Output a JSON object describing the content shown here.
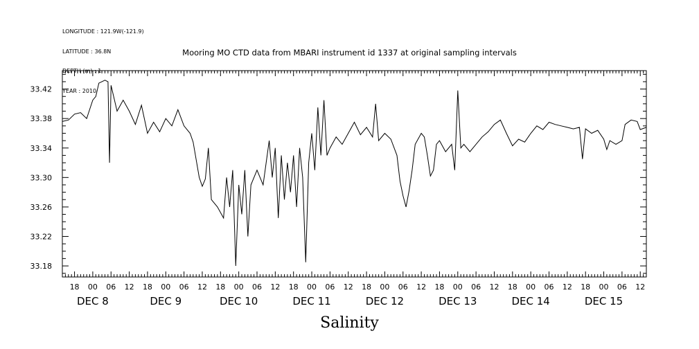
{
  "header": {
    "longitude": "LONGITUDE : 121.9W(-121.9)",
    "latitude": "LATITUDE : 36.8N",
    "depth": "DEPTH (m) : 1",
    "year": "YEAR : 2010"
  },
  "chart_data": {
    "type": "line",
    "title": "Mooring MO CTD data from MBARI instrument id 1337 at original sampling intervals",
    "xlabel": "Salinity",
    "ylabel": "",
    "ylim": [
      33.165,
      33.445
    ],
    "yticks": [
      "33.42",
      "33.38",
      "33.34",
      "33.30",
      "33.26",
      "33.22",
      "33.18"
    ],
    "ytick_values": [
      33.42,
      33.38,
      33.34,
      33.3,
      33.26,
      33.22,
      33.18
    ],
    "xlim_hours_note": "DEC 7 14:00 to DEC 15 14:00",
    "x_hour_labels": [
      "18",
      "00",
      "06",
      "12",
      "18",
      "00",
      "06",
      "12",
      "18",
      "00",
      "06",
      "12",
      "18",
      "00",
      "06",
      "12",
      "18",
      "00",
      "06",
      "12",
      "18",
      "00",
      "06",
      "12",
      "18",
      "00",
      "06",
      "12",
      "18",
      "00",
      "06",
      "12",
      "18",
      "00",
      "06",
      "12",
      "18",
      "00",
      "06",
      "12",
      "18",
      "00",
      "06",
      "12"
    ],
    "x_day_labels": [
      "DEC 8",
      "DEC 9",
      "DEC 10",
      "DEC 11",
      "DEC 12",
      "DEC 13",
      "DEC 14",
      "DEC 15"
    ],
    "series": [
      {
        "points": [
          [
            "DEC 7 14:00",
            33.376
          ],
          [
            "DEC 7 16:00",
            33.378
          ],
          [
            "DEC 7 18:00",
            33.386
          ],
          [
            "DEC 7 20:00",
            33.388
          ],
          [
            "DEC 7 22:00",
            33.38
          ],
          [
            "DEC 8 00:00",
            33.405
          ],
          [
            "DEC 8 01:00",
            33.41
          ],
          [
            "DEC 8 02:00",
            33.428
          ],
          [
            "DEC 8 04:00",
            33.432
          ],
          [
            "DEC 8 05:00",
            33.43
          ],
          [
            "DEC 8 05:30",
            33.32
          ],
          [
            "DEC 8 06:00",
            33.425
          ],
          [
            "DEC 8 08:00",
            33.39
          ],
          [
            "DEC 8 10:00",
            33.405
          ],
          [
            "DEC 8 12:00",
            33.39
          ],
          [
            "DEC 8 14:00",
            33.372
          ],
          [
            "DEC 8 16:00",
            33.398
          ],
          [
            "DEC 8 18:00",
            33.36
          ],
          [
            "DEC 8 20:00",
            33.375
          ],
          [
            "DEC 8 22:00",
            33.362
          ],
          [
            "DEC 9 00:00",
            33.38
          ],
          [
            "DEC 9 02:00",
            33.37
          ],
          [
            "DEC 9 04:00",
            33.392
          ],
          [
            "DEC 9 06:00",
            33.37
          ],
          [
            "DEC 9 08:00",
            33.36
          ],
          [
            "DEC 9 09:00",
            33.348
          ],
          [
            "DEC 9 11:00",
            33.3
          ],
          [
            "DEC 9 12:00",
            33.288
          ],
          [
            "DEC 9 13:00",
            33.298
          ],
          [
            "DEC 9 14:00",
            33.34
          ],
          [
            "DEC 9 15:00",
            33.27
          ],
          [
            "DEC 9 17:00",
            33.26
          ],
          [
            "DEC 9 19:00",
            33.245
          ],
          [
            "DEC 9 20:00",
            33.3
          ],
          [
            "DEC 9 21:00",
            33.26
          ],
          [
            "DEC 9 22:00",
            33.31
          ],
          [
            "DEC 9 23:00",
            33.18
          ],
          [
            "DEC 10 00:00",
            33.29
          ],
          [
            "DEC 10 01:00",
            33.25
          ],
          [
            "DEC 10 02:00",
            33.31
          ],
          [
            "DEC 10 03:00",
            33.22
          ],
          [
            "DEC 10 04:00",
            33.29
          ],
          [
            "DEC 10 06:00",
            33.31
          ],
          [
            "DEC 10 08:00",
            33.29
          ],
          [
            "DEC 10 09:00",
            33.32
          ],
          [
            "DEC 10 10:00",
            33.35
          ],
          [
            "DEC 10 11:00",
            33.3
          ],
          [
            "DEC 10 12:00",
            33.34
          ],
          [
            "DEC 10 13:00",
            33.245
          ],
          [
            "DEC 10 14:00",
            33.33
          ],
          [
            "DEC 10 15:00",
            33.27
          ],
          [
            "DEC 10 16:00",
            33.32
          ],
          [
            "DEC 10 17:00",
            33.28
          ],
          [
            "DEC 10 18:00",
            33.33
          ],
          [
            "DEC 10 19:00",
            33.26
          ],
          [
            "DEC 10 20:00",
            33.34
          ],
          [
            "DEC 10 21:00",
            33.3
          ],
          [
            "DEC 10 22:00",
            33.185
          ],
          [
            "DEC 10 23:00",
            33.32
          ],
          [
            "DEC 11 00:00",
            33.36
          ],
          [
            "DEC 11 01:00",
            33.31
          ],
          [
            "DEC 11 02:00",
            33.395
          ],
          [
            "DEC 11 03:00",
            33.33
          ],
          [
            "DEC 11 04:00",
            33.405
          ],
          [
            "DEC 11 05:00",
            33.33
          ],
          [
            "DEC 11 06:00",
            33.34
          ],
          [
            "DEC 11 08:00",
            33.355
          ],
          [
            "DEC 11 10:00",
            33.345
          ],
          [
            "DEC 11 12:00",
            33.36
          ],
          [
            "DEC 11 14:00",
            33.375
          ],
          [
            "DEC 11 16:00",
            33.358
          ],
          [
            "DEC 11 18:00",
            33.368
          ],
          [
            "DEC 11 20:00",
            33.355
          ],
          [
            "DEC 11 21:00",
            33.4
          ],
          [
            "DEC 11 22:00",
            33.35
          ],
          [
            "DEC 12 00:00",
            33.36
          ],
          [
            "DEC 12 02:00",
            33.352
          ],
          [
            "DEC 12 04:00",
            33.33
          ],
          [
            "DEC 12 05:00",
            33.295
          ],
          [
            "DEC 12 06:00",
            33.275
          ],
          [
            "DEC 12 07:00",
            33.26
          ],
          [
            "DEC 12 08:00",
            33.282
          ],
          [
            "DEC 12 09:00",
            33.31
          ],
          [
            "DEC 12 10:00",
            33.345
          ],
          [
            "DEC 12 12:00",
            33.36
          ],
          [
            "DEC 12 13:00",
            33.355
          ],
          [
            "DEC 12 14:00",
            33.33
          ],
          [
            "DEC 12 15:00",
            33.302
          ],
          [
            "DEC 12 16:00",
            33.31
          ],
          [
            "DEC 12 17:00",
            33.345
          ],
          [
            "DEC 12 18:00",
            33.35
          ],
          [
            "DEC 12 20:00",
            33.335
          ],
          [
            "DEC 12 22:00",
            33.345
          ],
          [
            "DEC 12 23:00",
            33.31
          ],
          [
            "DEC 13 00:00",
            33.418
          ],
          [
            "DEC 13 01:00",
            33.34
          ],
          [
            "DEC 13 02:00",
            33.345
          ],
          [
            "DEC 13 04:00",
            33.335
          ],
          [
            "DEC 13 06:00",
            33.345
          ],
          [
            "DEC 13 08:00",
            33.355
          ],
          [
            "DEC 13 10:00",
            33.362
          ],
          [
            "DEC 13 12:00",
            33.372
          ],
          [
            "DEC 13 14:00",
            33.378
          ],
          [
            "DEC 13 16:00",
            33.36
          ],
          [
            "DEC 13 18:00",
            33.343
          ],
          [
            "DEC 13 20:00",
            33.352
          ],
          [
            "DEC 13 22:00",
            33.348
          ],
          [
            "DEC 14 00:00",
            33.36
          ],
          [
            "DEC 14 02:00",
            33.37
          ],
          [
            "DEC 14 04:00",
            33.365
          ],
          [
            "DEC 14 06:00",
            33.375
          ],
          [
            "DEC 14 08:00",
            33.372
          ],
          [
            "DEC 14 10:00",
            33.37
          ],
          [
            "DEC 14 12:00",
            33.368
          ],
          [
            "DEC 14 14:00",
            33.366
          ],
          [
            "DEC 14 16:00",
            33.368
          ],
          [
            "DEC 14 17:00",
            33.325
          ],
          [
            "DEC 14 18:00",
            33.366
          ],
          [
            "DEC 14 20:00",
            33.36
          ],
          [
            "DEC 14 22:00",
            33.364
          ],
          [
            "DEC 15 00:00",
            33.352
          ],
          [
            "DEC 15 01:00",
            33.338
          ],
          [
            "DEC 15 02:00",
            33.35
          ],
          [
            "DEC 15 04:00",
            33.345
          ],
          [
            "DEC 15 06:00",
            33.35
          ],
          [
            "DEC 15 07:00",
            33.372
          ],
          [
            "DEC 15 09:00",
            33.378
          ],
          [
            "DEC 15 11:00",
            33.376
          ],
          [
            "DEC 15 12:00",
            33.365
          ],
          [
            "DEC 15 14:00",
            33.368
          ]
        ]
      }
    ]
  }
}
